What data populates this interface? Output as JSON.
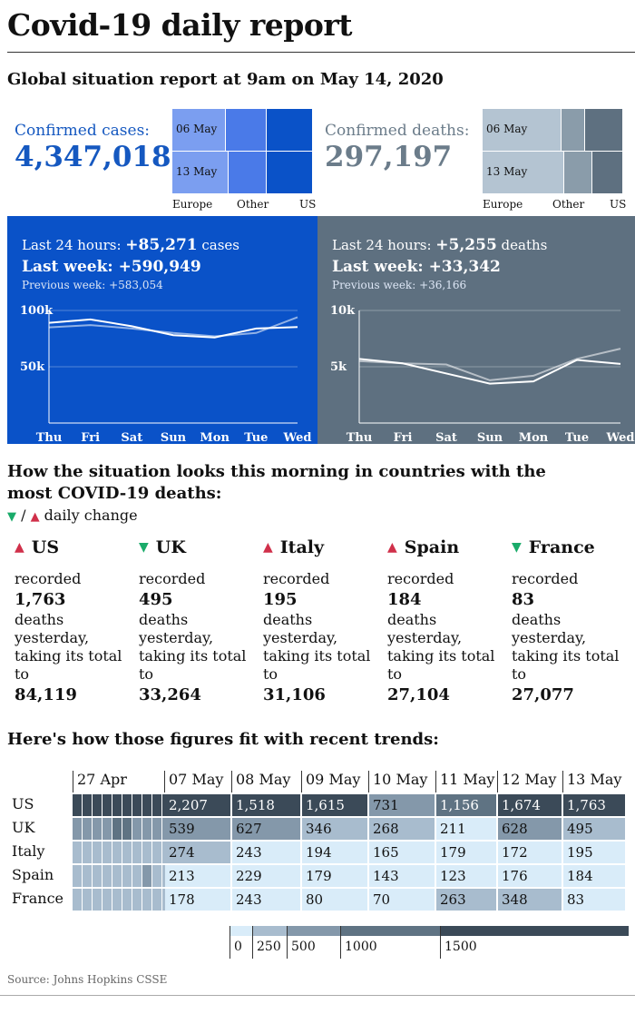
{
  "title": "Covid-19 daily report",
  "subtitle": "Global situation report at 9am on May 14, 2020",
  "confirmed_cases": {
    "label": "Confirmed cases:",
    "value": "4,347,018"
  },
  "confirmed_deaths": {
    "label": "Confirmed deaths:",
    "value": "297,197"
  },
  "mekko_labels": {
    "row1": "06 May",
    "row2": "13 May",
    "col1": "Europe",
    "col2": "Other",
    "col3": "US"
  },
  "colors": {
    "cases_blue": "#0a52c8",
    "deaths_slate": "#5e7080",
    "heat_levels": [
      "#d9ecf9",
      "#a8bcce",
      "#8498aa",
      "#5f7383",
      "#3b4a58"
    ]
  },
  "cases_panel": {
    "last24_prefix": "Last 24 hours: ",
    "last24_value": "+85,271",
    "last24_suffix": " cases",
    "week_prefix": "Last week: ",
    "week_value": "+590,949",
    "prev_prefix": "Previous week: ",
    "prev_value": "+583,054"
  },
  "deaths_panel": {
    "last24_prefix": "Last 24 hours: ",
    "last24_value": "+5,255",
    "last24_suffix": " deaths",
    "week_prefix": "Last week: ",
    "week_value": "+33,342",
    "prev_prefix": "Previous week: ",
    "prev_value": "+36,166"
  },
  "section2": {
    "heading": "How the situation looks this morning in countries with the most COVID-19 deaths:",
    "legend_sep": " / ",
    "legend_text": " daily change",
    "tri_down": "▼",
    "tri_up": "▲"
  },
  "country_text": {
    "recorded": "recorded",
    "deaths_yesterday": "deaths yesterday, taking its total to"
  },
  "countries": [
    {
      "name": "US",
      "dir": "up",
      "yesterday": "1,763",
      "total": "84,119"
    },
    {
      "name": "UK",
      "dir": "down",
      "yesterday": "495",
      "total": "33,264"
    },
    {
      "name": "Italy",
      "dir": "up",
      "yesterday": "195",
      "total": "31,106"
    },
    {
      "name": "Spain",
      "dir": "up",
      "yesterday": "184",
      "total": "27,104"
    },
    {
      "name": "France",
      "dir": "down",
      "yesterday": "83",
      "total": "27,077"
    }
  ],
  "section3": {
    "heading": "Here's how those figures fit with recent trends:"
  },
  "source": "Source: Johns Hopkins CSSE",
  "chart_data": [
    {
      "type": "bar",
      "categories": [
        "06 May",
        "13 May"
      ],
      "series": [
        {
          "name": "Europe",
          "values": [
            0.38,
            0.4
          ]
        },
        {
          "name": "Other",
          "values": [
            0.29,
            0.27
          ]
        },
        {
          "name": "US",
          "values": [
            0.33,
            0.33
          ]
        }
      ]
    },
    {
      "type": "bar",
      "categories": [
        "06 May",
        "13 May"
      ],
      "series": [
        {
          "name": "Europe",
          "values": [
            0.56,
            0.58
          ]
        },
        {
          "name": "Other",
          "values": [
            0.17,
            0.2
          ]
        },
        {
          "name": "US",
          "values": [
            0.27,
            0.22
          ]
        }
      ]
    },
    {
      "type": "line",
      "categories": [
        "Thu",
        "Fri",
        "Sat",
        "Sun",
        "Mon",
        "Tue",
        "Wed"
      ],
      "ylim": [
        0,
        100000
      ],
      "yticks": [
        50000,
        100000
      ],
      "ytick_labels": [
        "50k",
        "100k"
      ],
      "series": [
        {
          "values": [
            89000,
            92000,
            86000,
            78000,
            76000,
            84000,
            85271
          ]
        },
        {
          "values": [
            85000,
            87000,
            84000,
            80000,
            77000,
            80000,
            94000
          ]
        }
      ]
    },
    {
      "type": "line",
      "categories": [
        "Thu",
        "Fri",
        "Sat",
        "Sun",
        "Mon",
        "Tue",
        "Wed"
      ],
      "ylim": [
        0,
        10000
      ],
      "yticks": [
        5000,
        10000
      ],
      "ytick_labels": [
        "5k",
        "10k"
      ],
      "series": [
        {
          "values": [
            5700,
            5300,
            4400,
            3500,
            3700,
            5600,
            5255
          ]
        },
        {
          "values": [
            5500,
            5300,
            5200,
            3800,
            4200,
            5700,
            6600
          ]
        }
      ]
    },
    {
      "type": "heatmap",
      "rows": [
        "US",
        "UK",
        "Italy",
        "Spain",
        "France"
      ],
      "columns": [
        "07 May",
        "08 May",
        "09 May",
        "10 May",
        "11 May",
        "12 May",
        "13 May"
      ],
      "earlier_label": "27 Apr",
      "earlier_levels": [
        [
          4,
          4,
          4,
          4,
          4,
          4,
          4,
          4,
          4,
          4
        ],
        [
          2,
          2,
          2,
          2,
          3,
          3,
          2,
          2,
          2,
          2
        ],
        [
          1,
          1,
          1,
          1,
          1,
          1,
          1,
          1,
          1,
          1
        ],
        [
          1,
          1,
          1,
          1,
          1,
          1,
          1,
          2,
          1,
          1
        ],
        [
          1,
          1,
          1,
          1,
          1,
          1,
          1,
          1,
          1,
          1
        ]
      ],
      "values": [
        [
          2207,
          1518,
          1615,
          731,
          1156,
          1674,
          1763
        ],
        [
          539,
          627,
          346,
          268,
          211,
          628,
          495
        ],
        [
          274,
          243,
          194,
          165,
          179,
          172,
          195
        ],
        [
          213,
          229,
          179,
          143,
          123,
          176,
          184
        ],
        [
          178,
          243,
          80,
          70,
          263,
          348,
          83
        ]
      ],
      "labels": [
        [
          "2,207",
          "1,518",
          "1,615",
          "731",
          "1,156",
          "1,674",
          "1,763"
        ],
        [
          "539",
          "627",
          "346",
          "268",
          "211",
          "628",
          "495"
        ],
        [
          "274",
          "243",
          "194",
          "165",
          "179",
          "172",
          "195"
        ],
        [
          "213",
          "229",
          "179",
          "143",
          "123",
          "176",
          "184"
        ],
        [
          "178",
          "243",
          "80",
          "70",
          "263",
          "348",
          "83"
        ]
      ],
      "scale_breaks": [
        0,
        250,
        500,
        1000,
        1500
      ],
      "scale_labels": [
        "0",
        "250",
        "500",
        "1000",
        "1500"
      ]
    }
  ]
}
